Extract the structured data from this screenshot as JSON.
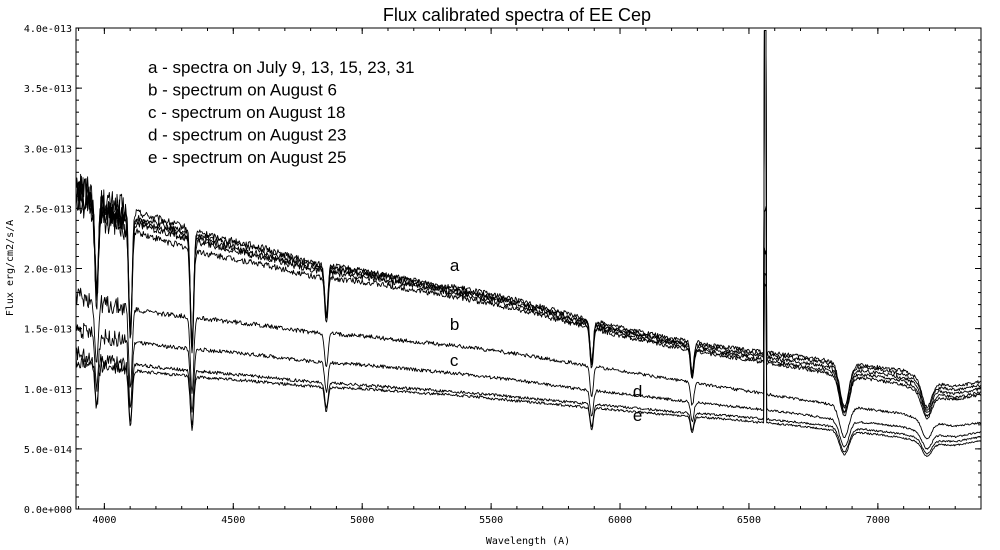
{
  "chart_data": {
    "type": "line",
    "title": "Flux calibrated spectra of EE Cep",
    "xlabel": "Wavelength (A)",
    "ylabel": "Flux erg/cm2/s/A",
    "xlim": [
      3890,
      7400
    ],
    "ylim": [
      0,
      4e-13
    ],
    "grid": false,
    "x_ticks": [
      {
        "value": 4000,
        "label": "4000"
      },
      {
        "value": 4500,
        "label": "4500"
      },
      {
        "value": 5000,
        "label": "5000"
      },
      {
        "value": 5500,
        "label": "5500"
      },
      {
        "value": 6000,
        "label": "6000"
      },
      {
        "value": 6500,
        "label": "6500"
      },
      {
        "value": 7000,
        "label": "7000"
      }
    ],
    "y_ticks": [
      {
        "value": 0,
        "label": "0.0e+000"
      },
      {
        "value": 5e-14,
        "label": "5.0e-014"
      },
      {
        "value": 1e-13,
        "label": "1.0e-013"
      },
      {
        "value": 1.5e-13,
        "label": "1.5e-013"
      },
      {
        "value": 2e-13,
        "label": "2.0e-013"
      },
      {
        "value": 2.5e-13,
        "label": "2.5e-013"
      },
      {
        "value": 3e-13,
        "label": "3.0e-013"
      },
      {
        "value": 3.5e-13,
        "label": "3.5e-013"
      },
      {
        "value": 4e-13,
        "label": "4.0e-013"
      }
    ],
    "legend": {
      "placement": "top-left",
      "entries": [
        "a - spectra on July 9, 13, 15, 23, 31",
        "b - spectrum on August 6",
        "c - spectrum on August 18",
        "d - spectrum on August 23",
        "e - spectrum on August 25"
      ]
    },
    "curve_labels": [
      {
        "text": "a",
        "x": 5340,
        "y": 1.98e-13
      },
      {
        "text": "b",
        "x": 5340,
        "y": 1.49e-13
      },
      {
        "text": "c",
        "x": 5340,
        "y": 1.19e-13
      },
      {
        "text": "d",
        "x": 6050,
        "y": 9.3e-14
      },
      {
        "text": "e",
        "x": 6050,
        "y": 7.3e-14
      }
    ],
    "lines_noted": [
      {
        "wavelength": 3970,
        "depth": 0.3
      },
      {
        "wavelength": 4101,
        "depth": 0.4
      },
      {
        "wavelength": 4340,
        "depth": 0.4
      },
      {
        "wavelength": 4861,
        "depth": 0.2
      },
      {
        "wavelength": 5890,
        "depth": 0.22
      },
      {
        "wavelength": 6280,
        "depth": 0.18
      },
      {
        "wavelength": 6870,
        "depth": 0.3
      },
      {
        "wavelength": 7190,
        "depth": 0.2
      }
    ],
    "series": [
      {
        "id": "a1",
        "x": [
          3890,
          4000,
          4200,
          4400,
          4600,
          4800,
          5000,
          5200,
          5400,
          5600,
          5800,
          6000,
          6200,
          6400,
          6500,
          6700,
          6850,
          7000,
          7100,
          7200,
          7300,
          7400
        ],
        "y": [
          2.75e-13,
          2.55e-13,
          2.42e-13,
          2.28e-13,
          2.18e-13,
          2.05e-13,
          1.98e-13,
          1.9e-13,
          1.83e-13,
          1.74e-13,
          1.62e-13,
          1.51e-13,
          1.42e-13,
          1.35e-13,
          1.32e-13,
          1.27e-13,
          1.22e-13,
          1.18e-13,
          1.15e-13,
          1.05e-13,
          1.02e-13,
          1.06e-13
        ]
      },
      {
        "id": "a2",
        "x": [
          3890,
          4000,
          4200,
          4400,
          4600,
          4800,
          5000,
          5200,
          5400,
          5600,
          5800,
          6000,
          6200,
          6400,
          6500,
          6700,
          6850,
          7000,
          7100,
          7200,
          7300,
          7400
        ],
        "y": [
          2.7e-13,
          2.5e-13,
          2.38e-13,
          2.25e-13,
          2.15e-13,
          2.03e-13,
          1.97e-13,
          1.89e-13,
          1.81e-13,
          1.72e-13,
          1.6e-13,
          1.49e-13,
          1.4e-13,
          1.33e-13,
          1.3e-13,
          1.25e-13,
          1.2e-13,
          1.16e-13,
          1.12e-13,
          1.02e-13,
          9.9e-14,
          1.03e-13
        ]
      },
      {
        "id": "a3",
        "x": [
          3890,
          4000,
          4200,
          4400,
          4600,
          4800,
          5000,
          5200,
          5400,
          5600,
          5800,
          6000,
          6200,
          6400,
          6500,
          6700,
          6850,
          7000,
          7100,
          7200,
          7300,
          7400
        ],
        "y": [
          2.65e-13,
          2.48e-13,
          2.35e-13,
          2.22e-13,
          2.12e-13,
          2.01e-13,
          1.95e-13,
          1.87e-13,
          1.8e-13,
          1.71e-13,
          1.59e-13,
          1.48e-13,
          1.39e-13,
          1.31e-13,
          1.28e-13,
          1.22e-13,
          1.17e-13,
          1.13e-13,
          1.09e-13,
          9.9e-14,
          9.6e-14,
          1e-13
        ]
      },
      {
        "id": "a4",
        "x": [
          3890,
          4000,
          4200,
          4400,
          4600,
          4800,
          5000,
          5200,
          5400,
          5600,
          5800,
          6000,
          6200,
          6400,
          6500,
          6700,
          6850,
          7000,
          7100,
          7200,
          7300,
          7400
        ],
        "y": [
          2.6e-13,
          2.45e-13,
          2.32e-13,
          2.2e-13,
          2.1e-13,
          1.99e-13,
          1.93e-13,
          1.86e-13,
          1.78e-13,
          1.69e-13,
          1.57e-13,
          1.46e-13,
          1.37e-13,
          1.29e-13,
          1.26e-13,
          1.19e-13,
          1.14e-13,
          1.1e-13,
          1.06e-13,
          9.6e-14,
          9.3e-14,
          9.7e-14
        ]
      },
      {
        "id": "a5",
        "x": [
          3890,
          4000,
          4200,
          4400,
          4600,
          4800,
          5000,
          5200,
          5400,
          5600,
          5800,
          6000,
          6200,
          6400,
          6500,
          6700,
          6850,
          7000,
          7100,
          7200,
          7300,
          7400
        ],
        "y": [
          2.55e-13,
          2.4e-13,
          2.25e-13,
          2.12e-13,
          2.04e-13,
          1.94e-13,
          1.89e-13,
          1.82e-13,
          1.75e-13,
          1.66e-13,
          1.55e-13,
          1.44e-13,
          1.35e-13,
          1.27e-13,
          1.24e-13,
          1.17e-13,
          1.11e-13,
          1.07e-13,
          1.03e-13,
          9.3e-14,
          9.1e-14,
          9.5e-14
        ]
      },
      {
        "id": "b",
        "x": [
          3890,
          4000,
          4200,
          4400,
          4600,
          4800,
          5000,
          5200,
          5400,
          5600,
          5800,
          6000,
          6200,
          6400,
          6500,
          6700,
          6850,
          7000,
          7100,
          7200,
          7300,
          7400
        ],
        "y": [
          1.78e-13,
          1.7e-13,
          1.63e-13,
          1.58e-13,
          1.53e-13,
          1.47e-13,
          1.44e-13,
          1.39e-13,
          1.35e-13,
          1.29e-13,
          1.22e-13,
          1.15e-13,
          1.08e-13,
          1.01e-13,
          9.8e-14,
          9.1e-14,
          8.6e-14,
          8.2e-14,
          7.9e-14,
          7.2e-14,
          6.9e-14,
          7.2e-14
        ]
      },
      {
        "id": "c",
        "x": [
          3890,
          4000,
          4200,
          4400,
          4600,
          4800,
          5000,
          5200,
          5400,
          5600,
          5800,
          6000,
          6200,
          6400,
          6500,
          6700,
          6850,
          7000,
          7100,
          7200,
          7300,
          7400
        ],
        "y": [
          1.5e-13,
          1.43e-13,
          1.36e-13,
          1.32e-13,
          1.28e-13,
          1.23e-13,
          1.2e-13,
          1.16e-13,
          1.12e-13,
          1.07e-13,
          1.01e-13,
          9.6e-14,
          9.1e-14,
          8.6e-14,
          8.4e-14,
          7.9e-14,
          7.4e-14,
          7.1e-14,
          6.8e-14,
          6.2e-14,
          6e-14,
          6.4e-14
        ]
      },
      {
        "id": "d",
        "x": [
          3890,
          4000,
          4200,
          4400,
          4600,
          4800,
          5000,
          5200,
          5400,
          5600,
          5800,
          6000,
          6200,
          6400,
          6500,
          6700,
          6850,
          7000,
          7100,
          7200,
          7300,
          7400
        ],
        "y": [
          1.3e-13,
          1.24e-13,
          1.18e-13,
          1.14e-13,
          1.1e-13,
          1.06e-13,
          1.03e-13,
          1e-13,
          9.7e-14,
          9.3e-14,
          8.9e-14,
          8.5e-14,
          8.1e-14,
          7.8e-14,
          7.6e-14,
          7.2e-14,
          6.8e-14,
          6.5e-14,
          6.2e-14,
          5.7e-14,
          5.6e-14,
          6e-14
        ]
      },
      {
        "id": "e",
        "x": [
          3890,
          4000,
          4200,
          4400,
          4600,
          4800,
          5000,
          5200,
          5400,
          5600,
          5800,
          6000,
          6200,
          6400,
          6500,
          6700,
          6850,
          7000,
          7100,
          7200,
          7300,
          7400
        ],
        "y": [
          1.22e-13,
          1.18e-13,
          1.13e-13,
          1.09e-13,
          1.06e-13,
          1.02e-13,
          1e-13,
          9.7e-14,
          9.4e-14,
          9e-14,
          8.6e-14,
          8.2e-14,
          7.8e-14,
          7.5e-14,
          7.3e-14,
          6.9e-14,
          6.5e-14,
          6.2e-14,
          5.9e-14,
          5.4e-14,
          5.3e-14,
          5.7e-14
        ]
      }
    ]
  }
}
